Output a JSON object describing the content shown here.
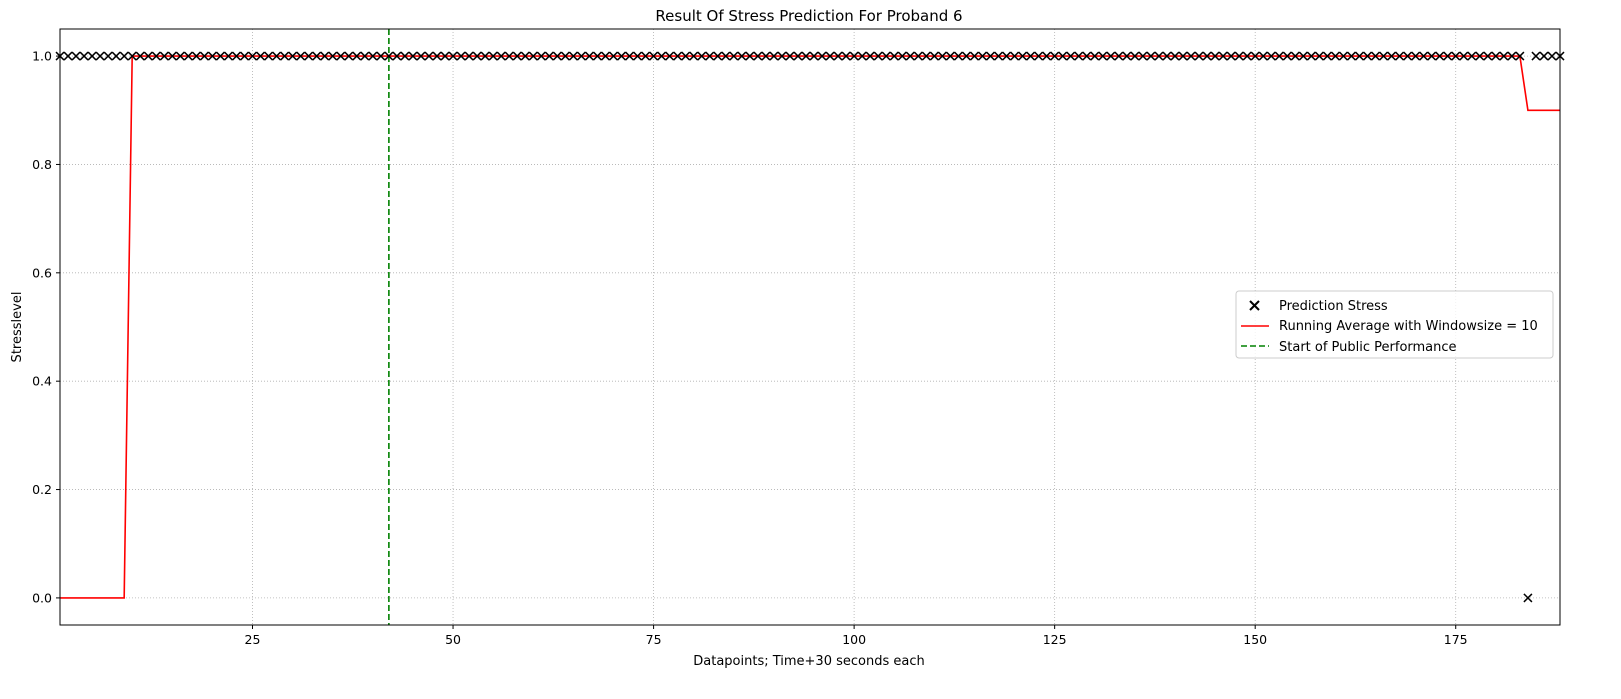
{
  "chart_data": {
    "type": "scatter",
    "title": "Result Of Stress Prediction For Proband 6",
    "xlabel": "Datapoints; Time+30 seconds each",
    "ylabel": "Stresslevel",
    "xlim": [
      1,
      188
    ],
    "ylim": [
      -0.05,
      1.05
    ],
    "xticks": [
      25,
      50,
      75,
      100,
      125,
      150,
      175
    ],
    "yticks": [
      0.0,
      0.2,
      0.4,
      0.6,
      0.8,
      1.0
    ],
    "xtick_labels": [
      "25",
      "50",
      "75",
      "100",
      "125",
      "150",
      "175"
    ],
    "ytick_labels": [
      "0.0",
      "0.2",
      "0.4",
      "0.6",
      "0.8",
      "1.0"
    ],
    "grid": true,
    "legend_position": "center-right",
    "series": [
      {
        "name": "Prediction Stress",
        "kind": "scatter",
        "marker": "x",
        "color": "#000000",
        "x_start": 1,
        "x_end": 188,
        "y_default": 1,
        "exceptions": [
          {
            "x": 184,
            "y": 0
          }
        ]
      },
      {
        "name": "Running Average with Windowsize = 10",
        "kind": "line",
        "color": "#ff0000",
        "x": [
          1,
          9,
          10,
          183,
          184,
          188
        ],
        "y": [
          0,
          0,
          1,
          1,
          0.9,
          0.9
        ]
      },
      {
        "name": "Start of Public Performance",
        "kind": "vline",
        "color": "#008000",
        "dash": "dashed",
        "x": 42
      }
    ]
  }
}
